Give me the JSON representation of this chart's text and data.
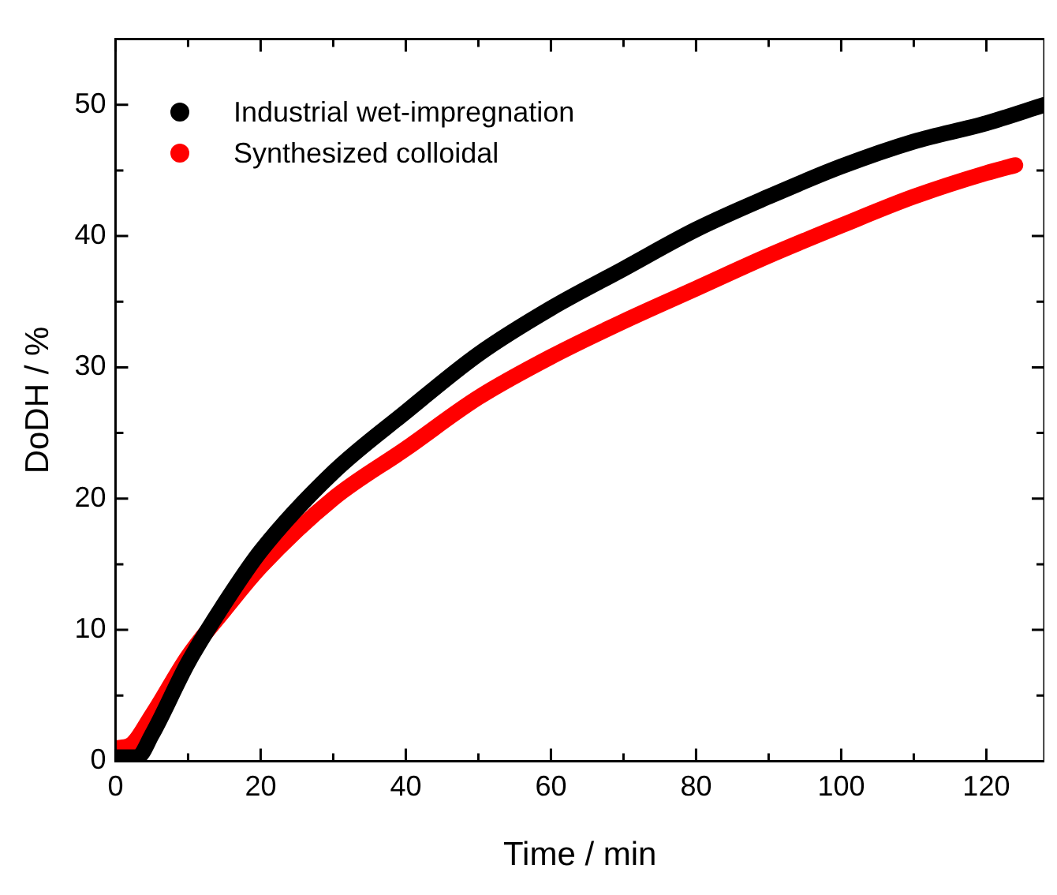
{
  "chart_data": {
    "type": "line",
    "xlabel": "Time / min",
    "ylabel": "DoDH / %",
    "x": [
      0,
      3,
      5,
      10,
      15,
      20,
      30,
      40,
      50,
      60,
      70,
      80,
      90,
      100,
      110,
      120,
      128
    ],
    "series": [
      {
        "name": "Industrial wet-impregnation",
        "color": "#000000",
        "values": [
          0.3,
          0.3,
          2,
          7.5,
          12,
          16,
          22,
          26.6,
          31,
          34.5,
          37.5,
          40.5,
          43,
          45.3,
          47.2,
          48.6,
          50
        ]
      },
      {
        "name": "Synthesized colloidal",
        "color": "#ff0000",
        "x": [
          0,
          2,
          5,
          10,
          15,
          20,
          30,
          40,
          50,
          60,
          70,
          80,
          90,
          100,
          110,
          120,
          124
        ],
        "values": [
          1,
          1.2,
          3.5,
          8,
          11.5,
          14.8,
          20,
          23.8,
          27.7,
          30.8,
          33.5,
          36,
          38.5,
          40.8,
          43,
          44.8,
          45.4
        ]
      }
    ],
    "xlim": [
      0,
      128
    ],
    "xticks": [
      0,
      20,
      40,
      60,
      80,
      100,
      120
    ],
    "ylim": [
      0,
      55
    ],
    "yticks": [
      0,
      10,
      20,
      30,
      40,
      50
    ],
    "grid": false,
    "legend": "top left",
    "marker": "none",
    "line_style": "solid"
  }
}
